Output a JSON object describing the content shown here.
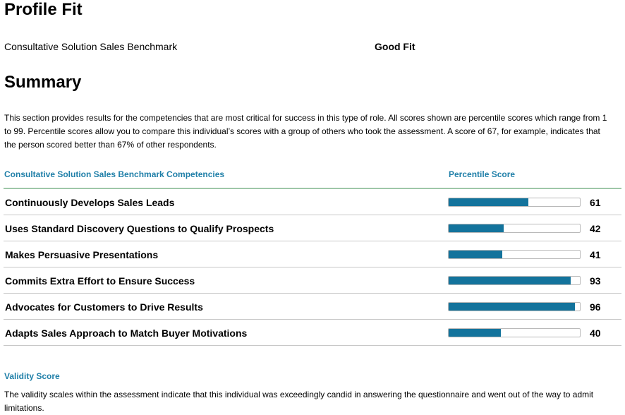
{
  "profile": {
    "title": "Profile Fit",
    "benchmark_name": "Consultative Solution Sales Benchmark",
    "fit_result": "Good Fit"
  },
  "summary": {
    "title": "Summary",
    "intro": "This section provides results for the competencies that are most critical for success in this type of role. All scores shown are percentile scores which range from 1 to 99. Percentile scores allow you to compare this individual’s scores with a group of others who took the assessment. A score of 67, for example, indicates that the person scored better than 67% of other respondents."
  },
  "table": {
    "col_competency": "Consultative Solution Sales Benchmark Competencies",
    "col_score": "Percentile Score",
    "bar_color": "#13739c",
    "rows": [
      {
        "label": "Continuously Develops Sales Leads",
        "score": "61",
        "value": 61
      },
      {
        "label": "Uses Standard Discovery Questions to Qualify Prospects",
        "score": "42",
        "value": 42
      },
      {
        "label": "Makes Persuasive Presentations",
        "score": "41",
        "value": 41
      },
      {
        "label": "Commits Extra Effort to Ensure Success",
        "score": "93",
        "value": 93
      },
      {
        "label": "Advocates for Customers to Drive Results",
        "score": "96",
        "value": 96
      },
      {
        "label": "Adapts Sales Approach to Match Buyer Motivations",
        "score": "40",
        "value": 40
      }
    ]
  },
  "validity": {
    "title": "Validity Score",
    "text": "The validity scales within the assessment indicate that this individual was exceedingly candid in answering the questionnaire and went out of the way to admit limitations."
  }
}
